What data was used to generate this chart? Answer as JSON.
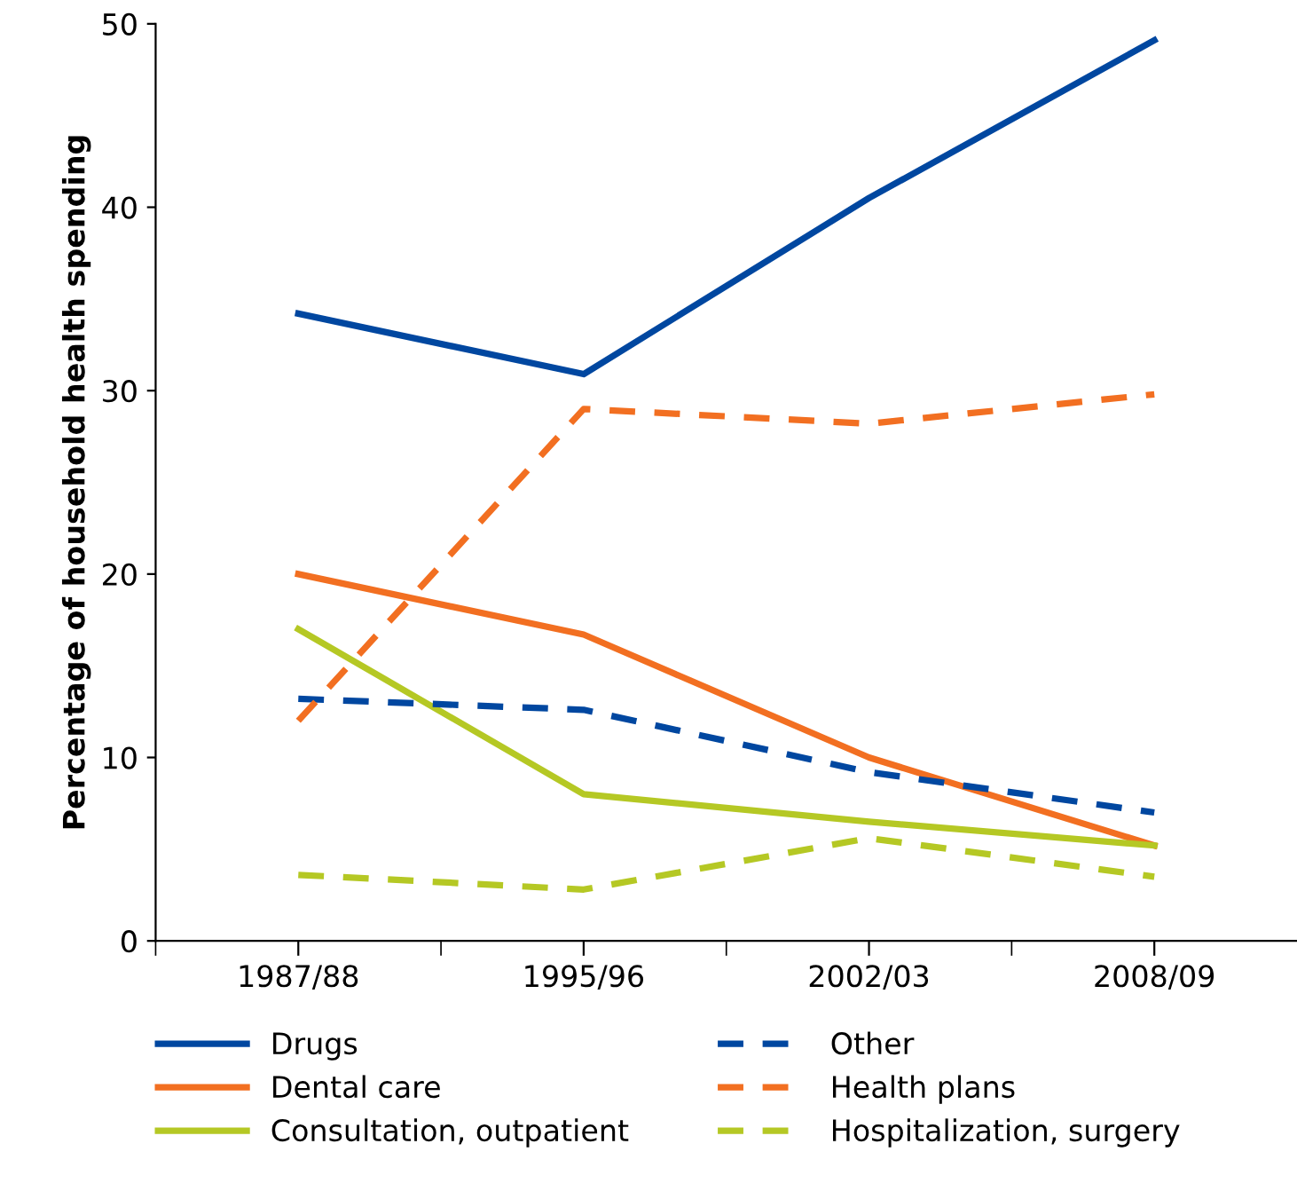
{
  "chart_data": {
    "type": "line",
    "ylabel": "Percentage of household health spending",
    "categories": [
      "1987/88",
      "1995/96",
      "2002/03",
      "2008/09"
    ],
    "ylim": [
      0,
      50
    ],
    "yticks": [
      0,
      10,
      20,
      30,
      40,
      50
    ],
    "grid": false,
    "legend": "bottom",
    "marker": "none",
    "series": [
      {
        "name": "Drugs",
        "color": "#0047a0",
        "line_style": "solid",
        "values": [
          34.2,
          30.9,
          40.5,
          49.1
        ]
      },
      {
        "name": "Dental care",
        "color": "#f26f21",
        "line_style": "solid",
        "values": [
          20,
          16.7,
          10,
          5.2
        ]
      },
      {
        "name": "Consultation, outpatient",
        "color": "#b5c824",
        "line_style": "solid",
        "values": [
          17,
          8,
          6.5,
          5.2
        ]
      },
      {
        "name": "Other",
        "color": "#0047a0",
        "line_style": "dashed",
        "values": [
          13.2,
          12.6,
          9.2,
          7
        ]
      },
      {
        "name": "Health plans",
        "color": "#f26f21",
        "line_style": "dashed",
        "values": [
          12,
          29,
          28.2,
          29.8
        ]
      },
      {
        "name": "Hospitalization, surgery",
        "color": "#b5c824",
        "line_style": "dashed",
        "values": [
          3.6,
          2.8,
          5.6,
          3.5
        ]
      }
    ]
  }
}
